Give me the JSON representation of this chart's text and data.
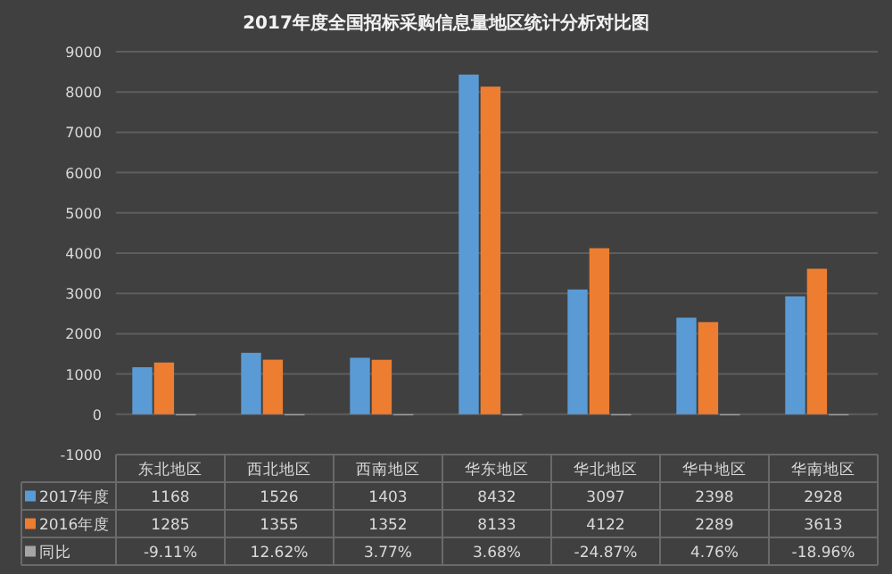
{
  "chart_data": {
    "type": "bar",
    "title": "2017年度全国招标采购信息量地区统计分析对比图",
    "categories": [
      "东北地区",
      "西北地区",
      "西南地区",
      "华东地区",
      "华北地区",
      "华中地区",
      "华南地区"
    ],
    "series": [
      {
        "name": "2017年度",
        "color": "#5b9bd5",
        "values": [
          1168,
          1526,
          1403,
          8432,
          3097,
          2398,
          2928
        ]
      },
      {
        "name": "2016年度",
        "color": "#ed7d31",
        "values": [
          1285,
          1355,
          1352,
          8133,
          4122,
          2289,
          3613
        ]
      },
      {
        "name": "同比",
        "color": "#a5a5a5",
        "values": [
          -0.0911,
          0.1262,
          0.0377,
          0.0368,
          -0.2487,
          0.0476,
          -0.1896
        ],
        "value_labels": [
          "-9.11%",
          "12.62%",
          "3.77%",
          "3.68%",
          "-24.87%",
          "4.76%",
          "-18.96%"
        ]
      }
    ],
    "ylim": [
      -1000,
      9000
    ],
    "yticks": [
      -1000,
      0,
      1000,
      2000,
      3000,
      4000,
      5000,
      6000,
      7000,
      8000,
      9000
    ],
    "grid": "y",
    "data_labels": true,
    "legend": "bottom"
  }
}
